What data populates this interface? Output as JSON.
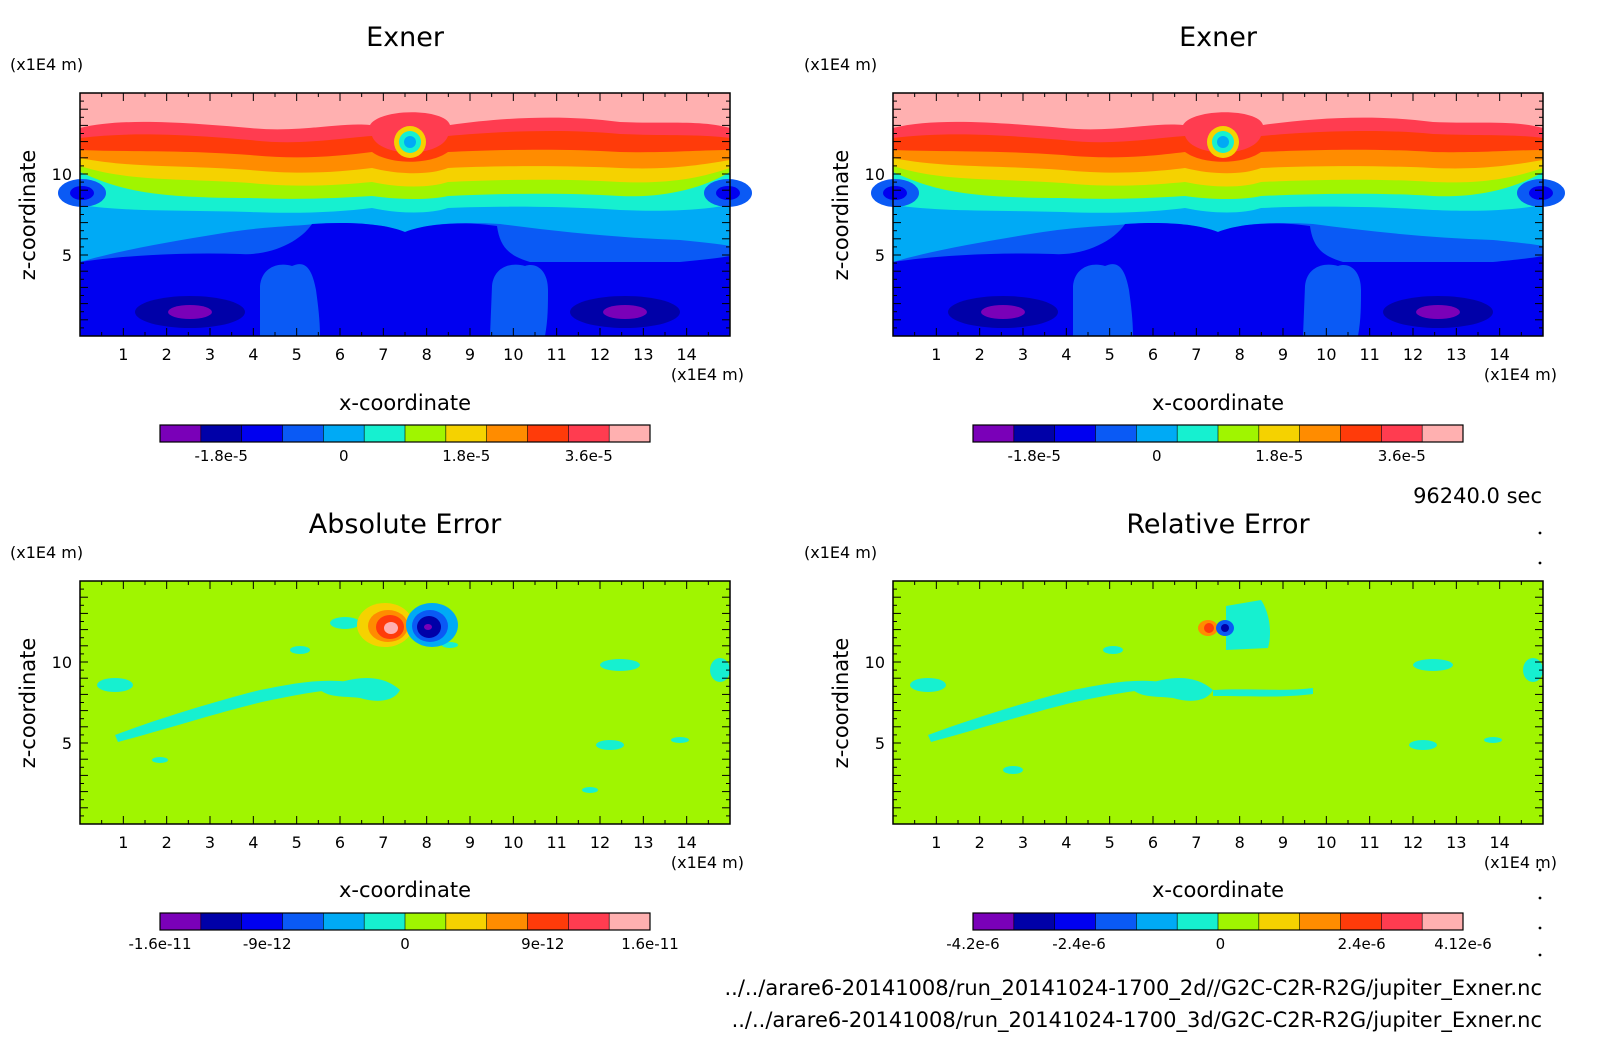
{
  "time_label": "96240.0 sec",
  "file_lines": [
    "../../arare6-20141008/run_20141024-1700_2d//G2C-C2R-R2G/jupiter_Exner.nc",
    "../../arare6-20141008/run_20141024-1700_3d/G2C-C2R-R2G/jupiter_Exner.nc"
  ],
  "palette": [
    "#7a00b8",
    "#0000a8",
    "#0000f0",
    "#0a5af5",
    "#00aaf5",
    "#16f0d0",
    "#a0f500",
    "#f5d200",
    "#ff8c00",
    "#ff3b0a",
    "#ff3c50",
    "#ffb0b0"
  ],
  "background_color": "#a0f500",
  "chart_data": [
    {
      "type": "heatmap",
      "title": "Exner",
      "xlabel": "x-coordinate",
      "ylabel": "z-coordinate",
      "x_unit": "(x1E4 m)",
      "y_unit": "(x1E4 m)",
      "xlim": [
        0,
        15
      ],
      "ylim": [
        0,
        15
      ],
      "xticks": [
        "1",
        "2",
        "3",
        "4",
        "5",
        "6",
        "7",
        "8",
        "9",
        "10",
        "11",
        "12",
        "13",
        "14"
      ],
      "yticks": [
        "5",
        "10"
      ],
      "colorbar_ticks": [
        "-1.8e-5",
        "0",
        "1.8e-5",
        "3.6e-5"
      ],
      "colorbar_range": [
        -2.7e-05,
        4.5e-05
      ]
    },
    {
      "type": "heatmap",
      "title": "Exner",
      "xlabel": "x-coordinate",
      "ylabel": "z-coordinate",
      "x_unit": "(x1E4 m)",
      "y_unit": "(x1E4 m)",
      "xlim": [
        0,
        15
      ],
      "ylim": [
        0,
        15
      ],
      "xticks": [
        "1",
        "2",
        "3",
        "4",
        "5",
        "6",
        "7",
        "8",
        "9",
        "10",
        "11",
        "12",
        "13",
        "14"
      ],
      "yticks": [
        "5",
        "10"
      ],
      "colorbar_ticks": [
        "-1.8e-5",
        "0",
        "1.8e-5",
        "3.6e-5"
      ],
      "colorbar_range": [
        -2.7e-05,
        4.5e-05
      ]
    },
    {
      "type": "heatmap",
      "title": "Absolute Error",
      "xlabel": "x-coordinate",
      "ylabel": "z-coordinate",
      "x_unit": "(x1E4 m)",
      "y_unit": "(x1E4 m)",
      "xlim": [
        0,
        15
      ],
      "ylim": [
        0,
        15
      ],
      "xticks": [
        "1",
        "2",
        "3",
        "4",
        "5",
        "6",
        "7",
        "8",
        "9",
        "10",
        "11",
        "12",
        "13",
        "14"
      ],
      "yticks": [
        "5",
        "10"
      ],
      "colorbar_ticks": [
        "-1.6e-11",
        "-9e-12",
        "0",
        "9e-12",
        "1.6e-11"
      ],
      "colorbar_range": [
        -1.6e-11,
        1.6e-11
      ]
    },
    {
      "type": "heatmap",
      "title": "Relative Error",
      "xlabel": "x-coordinate",
      "ylabel": "z-coordinate",
      "x_unit": "(x1E4 m)",
      "y_unit": "(x1E4 m)",
      "xlim": [
        0,
        15
      ],
      "ylim": [
        0,
        15
      ],
      "xticks": [
        "1",
        "2",
        "3",
        "4",
        "5",
        "6",
        "7",
        "8",
        "9",
        "10",
        "11",
        "12",
        "13",
        "14"
      ],
      "yticks": [
        "5",
        "10"
      ],
      "colorbar_ticks": [
        "-4.2e-6",
        "-2.4e-6",
        "0",
        "2.4e-6",
        "4.12e-6"
      ],
      "colorbar_range": [
        -4.2e-06,
        4.12e-06
      ]
    }
  ]
}
